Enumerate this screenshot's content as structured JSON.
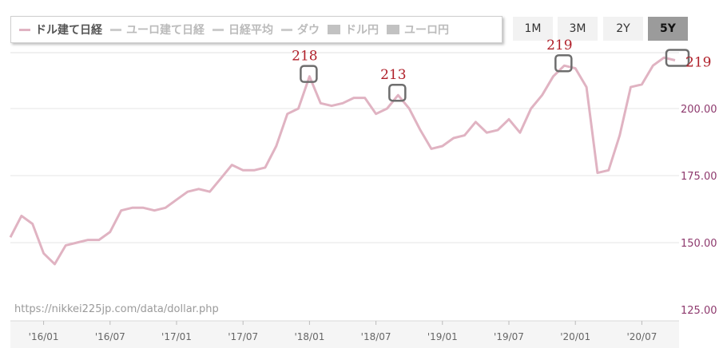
{
  "legend": [
    {
      "label": "ドル建て日経",
      "kind": "line",
      "active": true
    },
    {
      "label": "ユーロ建て日経",
      "kind": "line",
      "active": false
    },
    {
      "label": "日経平均",
      "kind": "line",
      "active": false
    },
    {
      "label": "ダウ",
      "kind": "line",
      "active": false
    },
    {
      "label": "ドル円",
      "kind": "box",
      "active": false
    },
    {
      "label": "ユーロ円",
      "kind": "box",
      "active": false
    }
  ],
  "range_buttons": [
    {
      "label": "1M",
      "active": false
    },
    {
      "label": "3M",
      "active": false
    },
    {
      "label": "2Y",
      "active": false
    },
    {
      "label": "5Y",
      "active": true
    }
  ],
  "source": "https://nikkei225jp.com/data/dollar.php",
  "colors": {
    "series": "#e0b3c2",
    "annotation": "#b0202a",
    "tick_label": "#8e3a6e",
    "marker_box": "#6e6e6e",
    "grid": "#e6e6e6"
  },
  "chart_data": {
    "type": "line",
    "x_tick_labels": [
      "'16/01",
      "'16/07",
      "'17/01",
      "'17/07",
      "'18/01",
      "'18/07",
      "'19/01",
      "'19/07",
      "'20/01",
      "'20/07"
    ],
    "y_ticks": [
      125,
      150,
      175,
      200
    ],
    "y_tick_labels": [
      "125.00",
      "150.00",
      "175.00",
      "200.00"
    ],
    "ylim": [
      125,
      222
    ],
    "x_start": "2015-10",
    "series": [
      {
        "values": [
          152,
          160,
          157,
          146,
          142,
          149,
          150,
          151,
          151,
          154,
          162,
          163,
          163,
          162,
          163,
          166,
          169,
          170,
          169,
          174,
          179,
          177,
          177,
          178,
          186,
          198,
          200,
          212,
          202,
          201,
          202,
          204,
          204,
          198,
          200,
          205,
          200,
          192,
          185,
          186,
          189,
          190,
          195,
          191,
          192,
          196,
          191,
          200,
          205,
          212,
          216,
          215,
          208,
          176,
          177,
          190,
          208,
          209,
          216,
          219,
          218
        ]
      }
    ],
    "annotations": [
      {
        "label": "218",
        "x": "2018-01"
      },
      {
        "label": "213",
        "x": "2018-09"
      },
      {
        "label": "219",
        "x": "2019-12"
      },
      {
        "label": "219",
        "x": "2020-10"
      }
    ],
    "last_value_label": "219"
  }
}
